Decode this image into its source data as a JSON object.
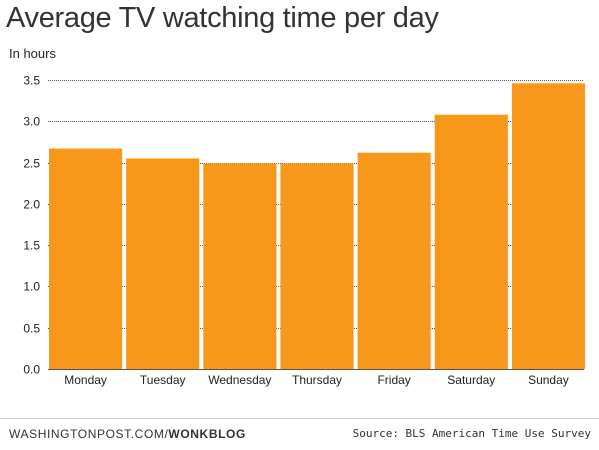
{
  "chart_data": {
    "type": "bar",
    "title": "Average TV watching time per day",
    "ylabel": "In hours",
    "xlabel": "",
    "categories": [
      "Monday",
      "Tuesday",
      "Wednesday",
      "Thursday",
      "Friday",
      "Saturday",
      "Sunday"
    ],
    "values": [
      2.67,
      2.55,
      2.49,
      2.49,
      2.62,
      3.08,
      3.46
    ],
    "ylim": [
      0,
      3.5
    ],
    "yticks": [
      "0.0",
      "0.5",
      "1.0",
      "1.5",
      "2.0",
      "2.5",
      "3.0",
      "3.5"
    ],
    "grid": true,
    "bar_color": "#F7981D",
    "grid_color": "#555555"
  },
  "footer": {
    "credit_prefix": "WASHINGTONPOST.COM/",
    "credit_brand": "WONKBLOG",
    "source": "Source: BLS American Time Use Survey"
  }
}
